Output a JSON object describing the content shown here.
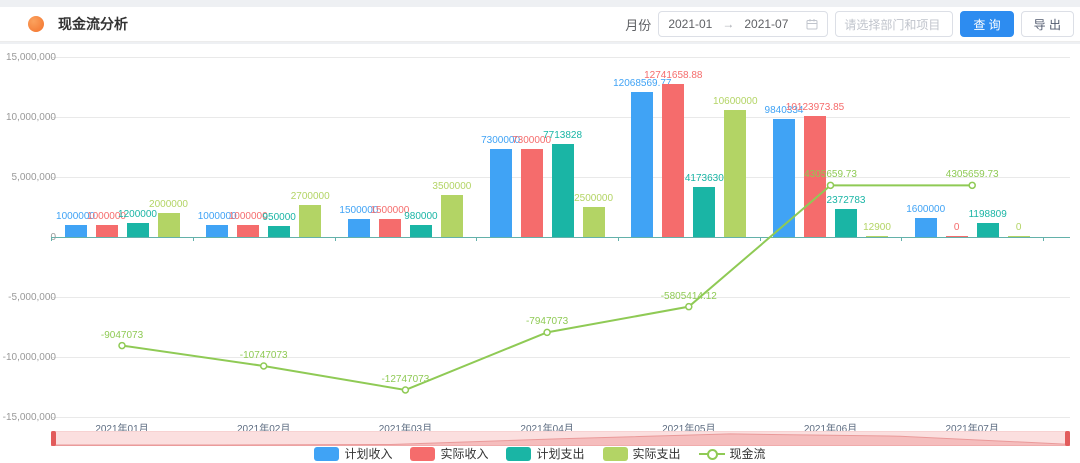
{
  "header": {
    "title": "现金流分析",
    "month_label": "月份",
    "date_range": {
      "start": "2021-01",
      "separator": "→",
      "end": "2021-07"
    },
    "filter_placeholder": "请选择部门和项目",
    "query_button": "查 询",
    "export_button": "导 出"
  },
  "theme": {
    "primary_button_color": "#2d8cf0",
    "title_icon_color": "#f3722c",
    "axis_line_color": "#63b1aa",
    "datazoom_bg": "#fbdfdf",
    "datazoom_fill": "#f0a0a0",
    "datazoom_handle": "#e25b5b"
  },
  "chart_data": {
    "type": "bar",
    "subtype": "grouped bars + line overlay",
    "categories": [
      "2021年01月",
      "2021年02月",
      "2021年03月",
      "2021年04月",
      "2021年05月",
      "2021年06月",
      "2021年07月"
    ],
    "series": [
      {
        "key": "planned-income",
        "name": "计划收入",
        "type": "bar",
        "color": "#40a3f5",
        "values": [
          1000000,
          1000000,
          1500000,
          7300000,
          12068569.77,
          9840334,
          1600000
        ]
      },
      {
        "key": "actual-income",
        "name": "实际收入",
        "type": "bar",
        "color": "#f56c6c",
        "values": [
          1000000,
          1000000,
          1500000,
          7300000,
          12741658.88,
          10123973.85,
          0
        ]
      },
      {
        "key": "planned-expense",
        "name": "计划支出",
        "type": "bar",
        "color": "#1ab5a5",
        "values": [
          1200000,
          950000,
          980000,
          7713828,
          4173630,
          2372783,
          1198809
        ]
      },
      {
        "key": "actual-expense",
        "name": "实际支出",
        "type": "bar",
        "color": "#b3d465",
        "values": [
          2000000,
          2700000,
          3500000,
          2500000,
          10600000,
          12900,
          0
        ]
      },
      {
        "key": "cashflow",
        "name": "现金流",
        "type": "line",
        "color": "#8fca55",
        "values": [
          -9047073,
          -10747073,
          -12747073,
          -7947073,
          -5805414.12,
          4305659.73,
          4305659.73
        ]
      }
    ],
    "ylim": [
      -15000000,
      15000000
    ],
    "y_tick_labels": [
      "15,000,000",
      "10,000,000",
      "5,000,000",
      "0",
      "-5,000,000",
      "-10,000,000",
      "-15,000,000"
    ],
    "grid": true,
    "legend_position": "bottom",
    "datazoom": "pink slider with data shadow, bottom"
  }
}
